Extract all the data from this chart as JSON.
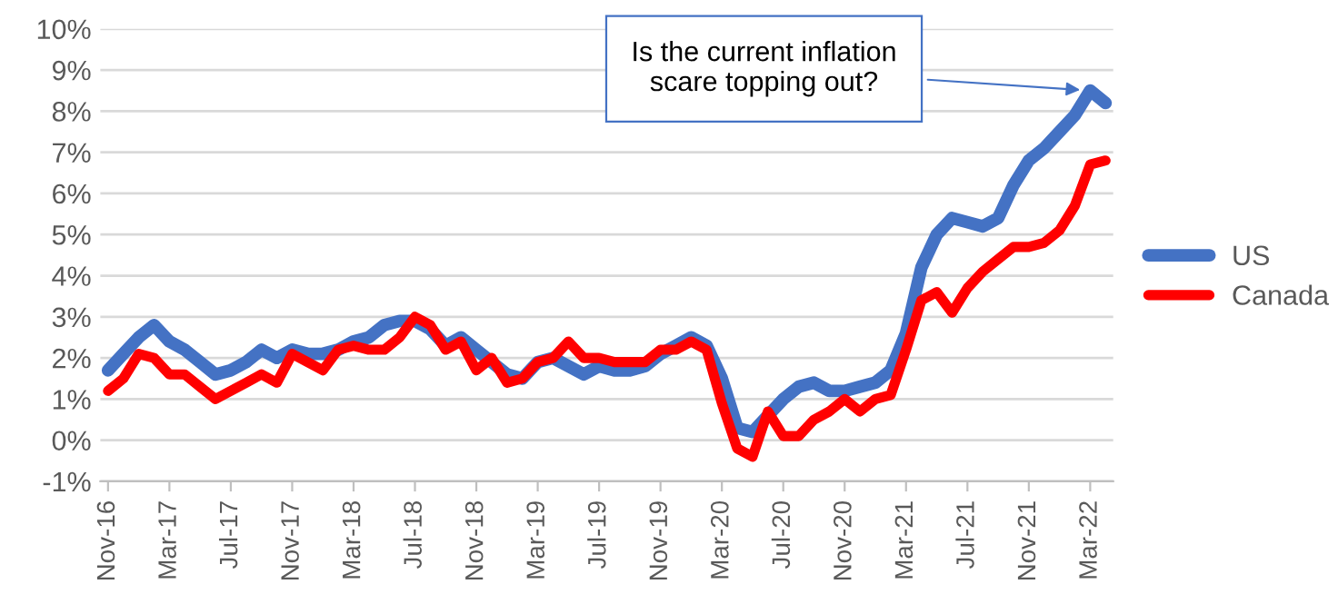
{
  "chart_data": {
    "type": "line",
    "categories": [
      "Nov-16",
      null,
      null,
      null,
      "Mar-17",
      null,
      null,
      null,
      "Jul-17",
      null,
      null,
      null,
      "Nov-17",
      null,
      null,
      null,
      "Mar-18",
      null,
      null,
      null,
      "Jul-18",
      null,
      null,
      null,
      "Nov-18",
      null,
      null,
      null,
      "Mar-19",
      null,
      null,
      null,
      "Jul-19",
      null,
      null,
      null,
      "Nov-19",
      null,
      null,
      null,
      "Mar-20",
      null,
      null,
      null,
      "Jul-20",
      null,
      null,
      null,
      "Nov-20",
      null,
      null,
      null,
      "Mar-21",
      null,
      null,
      null,
      "Jul-21",
      null,
      null,
      null,
      "Nov-21",
      null,
      null,
      null,
      "Mar-22",
      null
    ],
    "series": [
      {
        "name": "US",
        "color": "#4472c4",
        "values": [
          1.7,
          2.1,
          2.5,
          2.8,
          2.4,
          2.2,
          1.9,
          1.6,
          1.7,
          1.9,
          2.2,
          2.0,
          2.2,
          2.1,
          2.1,
          2.2,
          2.4,
          2.5,
          2.8,
          2.9,
          2.9,
          2.7,
          2.3,
          2.5,
          2.2,
          1.9,
          1.6,
          1.5,
          1.9,
          2.0,
          1.8,
          1.6,
          1.8,
          1.7,
          1.7,
          1.8,
          2.1,
          2.3,
          2.5,
          2.3,
          1.5,
          0.3,
          0.2,
          0.6,
          1.0,
          1.3,
          1.4,
          1.2,
          1.2,
          1.3,
          1.4,
          1.7,
          2.6,
          4.2,
          5.0,
          5.4,
          5.3,
          5.2,
          5.4,
          6.2,
          6.8,
          7.1,
          7.5,
          7.9,
          8.5,
          8.2
        ]
      },
      {
        "name": "Canada",
        "color": "#ff0000",
        "values": [
          1.2,
          1.5,
          2.1,
          2.0,
          1.6,
          1.6,
          1.3,
          1.0,
          1.2,
          1.4,
          1.6,
          1.4,
          2.1,
          1.9,
          1.7,
          2.2,
          2.3,
          2.2,
          2.2,
          2.5,
          3.0,
          2.8,
          2.2,
          2.4,
          1.7,
          2.0,
          1.4,
          1.5,
          1.9,
          2.0,
          2.4,
          2.0,
          2.0,
          1.9,
          1.9,
          1.9,
          2.2,
          2.2,
          2.4,
          2.2,
          0.9,
          -0.2,
          -0.4,
          0.7,
          0.1,
          0.1,
          0.5,
          0.7,
          1.0,
          0.7,
          1.0,
          1.1,
          2.2,
          3.4,
          3.6,
          3.1,
          3.7,
          4.1,
          4.4,
          4.7,
          4.7,
          4.8,
          5.1,
          5.7,
          6.7,
          6.8
        ]
      }
    ],
    "ylim": [
      -1,
      10
    ],
    "yticks": [
      {
        "value": -1,
        "label": "-1%"
      },
      {
        "value": 0,
        "label": "0%"
      },
      {
        "value": 1,
        "label": "1%"
      },
      {
        "value": 2,
        "label": "2%"
      },
      {
        "value": 3,
        "label": "3%"
      },
      {
        "value": 4,
        "label": "4%"
      },
      {
        "value": 5,
        "label": "5%"
      },
      {
        "value": 6,
        "label": "6%"
      },
      {
        "value": 7,
        "label": "7%"
      },
      {
        "value": 8,
        "label": "8%"
      },
      {
        "value": 9,
        "label": "9%"
      },
      {
        "value": 10,
        "label": "10%"
      }
    ],
    "grid": "y",
    "legend": "right",
    "line_style": "solid",
    "annotations": [
      {
        "text": "Is the current inflation\nscare topping out?",
        "x": "Mar-22",
        "y": 8.5
      }
    ]
  }
}
